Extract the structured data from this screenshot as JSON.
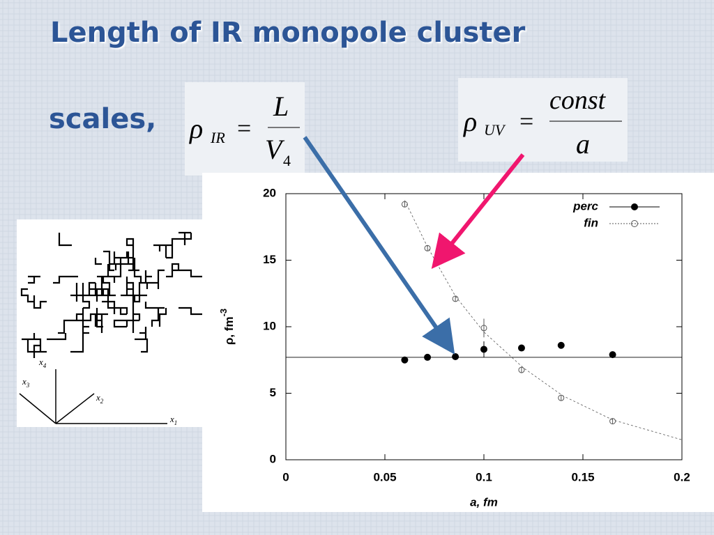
{
  "title": "Length of IR monopole cluster",
  "lead": "scales,",
  "formula_ir": {
    "symbol": "ρ",
    "sub": "IR",
    "eq": "=",
    "num": "L",
    "den": "V",
    "den_sub": "4"
  },
  "formula_uv": {
    "symbol": "ρ",
    "sub": "UV",
    "eq": "=",
    "num": "const",
    "den": "a"
  },
  "cluster_axes": [
    {
      "base": "x",
      "sub": "1"
    },
    {
      "base": "x",
      "sub": "2"
    },
    {
      "base": "x",
      "sub": "3"
    },
    {
      "base": "x",
      "sub": "4"
    }
  ],
  "chart_data": {
    "type": "scatter",
    "xlabel": "a, fm",
    "ylabel": "ρ, fm",
    "ylabel_sup": "-3",
    "xlim": [
      0,
      0.2
    ],
    "ylim": [
      0,
      20
    ],
    "xticks": [
      0,
      0.05,
      0.1,
      0.15,
      0.2
    ],
    "yticks": [
      0,
      5,
      10,
      15,
      20
    ],
    "legend": "upper right",
    "series": [
      {
        "name": "perc",
        "color": "#000000",
        "filled": true,
        "x": [
          0.06,
          0.0715,
          0.0856,
          0.1,
          0.119,
          0.139,
          0.165
        ],
        "values": [
          7.5,
          7.7,
          7.75,
          8.3,
          8.4,
          8.6,
          7.9
        ],
        "errors": [
          0.2,
          0.1,
          0.1,
          0.6,
          0.1,
          0.1,
          0.1
        ]
      },
      {
        "name": "fin",
        "color": "#555555",
        "filled": false,
        "x": [
          0.06,
          0.0715,
          0.0856,
          0.1,
          0.119,
          0.139,
          0.165
        ],
        "values": [
          19.2,
          15.9,
          12.1,
          9.9,
          6.75,
          4.65,
          2.9
        ],
        "errors": [
          0.2,
          0.2,
          0.2,
          0.7,
          0.2,
          0.2,
          0.2
        ]
      }
    ],
    "fit": {
      "x": [
        0.06,
        0.0715,
        0.0856,
        0.1,
        0.12,
        0.14,
        0.165,
        0.2
      ],
      "values": [
        19.5,
        16,
        12.3,
        9.6,
        6.9,
        4.8,
        3.0,
        1.5
      ]
    },
    "hline": 7.7
  }
}
